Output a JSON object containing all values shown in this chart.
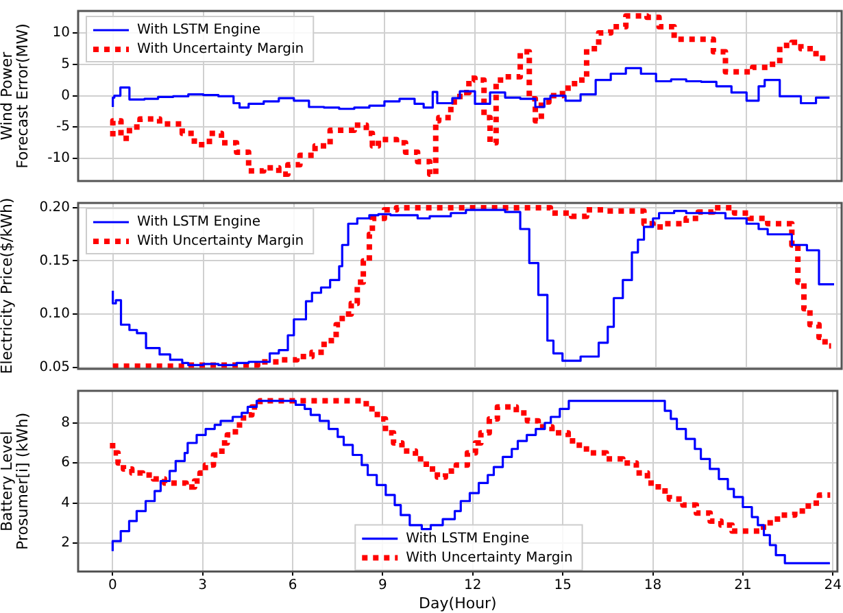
{
  "chart_data": [
    {
      "type": "step",
      "ylabel": "Wind Power Forecast Error(MW)",
      "xlim": [
        -1.15,
        24.15
      ],
      "xticks": [
        0,
        3,
        6,
        9,
        12,
        15,
        18,
        21,
        24
      ],
      "ylim": [
        -13.6,
        13.5
      ],
      "yticks": [
        -10,
        -5,
        0,
        5,
        10
      ],
      "grid": true,
      "legend": "top left",
      "tick_labels": "y",
      "series": [
        {
          "name": "With LSTM Engine",
          "color": "#0000ff",
          "line_style": "solid",
          "x": [
            0,
            0.05,
            0.25,
            0.55,
            1.05,
            1.5,
            2,
            2.5,
            3,
            3.5,
            4,
            4.2,
            4.5,
            5,
            5.5,
            6,
            6.5,
            7,
            7.5,
            8,
            8.5,
            9,
            9.5,
            10,
            10.3,
            10.6,
            10.75,
            11.25,
            11.5,
            12,
            12.5,
            13,
            13.5,
            14,
            14.3,
            14.5,
            15,
            15.5,
            16,
            16.5,
            17,
            17.5,
            18,
            18.5,
            19,
            19.5,
            20,
            20.5,
            21,
            21.4,
            21.6,
            22.1,
            22.8,
            23.3,
            23.75
          ],
          "values": [
            -1.8,
            -0.3,
            0,
            1.3,
            -0.6,
            -0.5,
            -0.2,
            -0.1,
            0.2,
            0.1,
            -0.1,
            -1.2,
            -1.9,
            -1.3,
            -0.9,
            -0.4,
            -0.8,
            -1.8,
            -1.9,
            -2.1,
            -1.9,
            -1.6,
            -0.9,
            -0.5,
            -1.3,
            -1.9,
            0.6,
            -1.2,
            -0.4,
            0.7,
            -1.3,
            0.5,
            -0.3,
            -0.5,
            -1.8,
            -0.5,
            0,
            -0.8,
            0.2,
            2.5,
            3.5,
            4.4,
            3.5,
            2.3,
            2.6,
            2.3,
            2.2,
            1.5,
            0.5,
            -0.8,
            1.5,
            2.5,
            -0.1,
            -1.2,
            -0.3
          ]
        },
        {
          "name": "With Uncertainty Margin",
          "color": "#ff0000",
          "line_style": "dotted",
          "x": [
            0,
            0.27,
            0.55,
            0.9,
            1.55,
            2.3,
            2.7,
            3.2,
            3.6,
            4.1,
            4.5,
            5,
            5.5,
            5.8,
            6.2,
            6.7,
            7.2,
            7.5,
            8,
            8.4,
            8.6,
            8.8,
            9.4,
            9.7,
            10.1,
            10.5,
            10.7,
            10.8,
            11.2,
            11.5,
            11.8,
            12,
            12.3,
            12.5,
            12.7,
            13,
            13.5,
            13.8,
            14,
            14.2,
            14.45,
            14.9,
            15.3,
            15.7,
            16.1,
            16.5,
            17,
            17.7,
            18.1,
            18.6,
            19.3,
            19.9,
            20.3,
            20.6,
            21.2,
            21.7,
            22.1,
            22.5,
            22.8,
            23.3,
            23.75
          ],
          "values": [
            -6.5,
            -4,
            -6.8,
            -5,
            -3.7,
            -4.5,
            -6,
            -7.8,
            -6,
            -7.5,
            -9,
            -12,
            -11.5,
            -12.5,
            -11,
            -9.5,
            -8,
            -5.5,
            -5.5,
            -4.7,
            -6,
            -8,
            -7,
            -7.5,
            -9,
            -10.5,
            -12.5,
            -4,
            -3.5,
            -1,
            0.5,
            2.8,
            2.5,
            -3.5,
            -7.5,
            2.5,
            3,
            7,
            -0.5,
            -4,
            -1,
            0,
            1.2,
            2.5,
            7.5,
            10,
            11,
            12.7,
            12.5,
            11,
            9,
            9,
            7,
            3.8,
            3.8,
            4.5,
            5,
            8,
            8.5,
            7.5,
            6
          ]
        }
      ]
    },
    {
      "type": "step",
      "ylabel": "Electricity Price($/kWh)",
      "xlim": [
        -1.15,
        24.15
      ],
      "xticks": [
        0,
        3,
        6,
        9,
        12,
        15,
        18,
        21,
        24
      ],
      "ylim": [
        0.0484,
        0.2045
      ],
      "yticks": [
        {
          "value": 0.05,
          "label": "0.05"
        },
        {
          "value": 0.1,
          "label": "0.10"
        },
        {
          "value": 0.15,
          "label": "0.15"
        },
        {
          "value": 0.2,
          "label": "0.20"
        }
      ],
      "grid": true,
      "legend": "top left",
      "tick_labels": "y",
      "series": [
        {
          "name": "With LSTM Engine",
          "color": "#0000ff",
          "line_style": "solid",
          "x": [
            0,
            0.1,
            0.27,
            0.55,
            0.8,
            1.1,
            1.55,
            1.9,
            2.3,
            2.5,
            3,
            3.5,
            4.1,
            4.5,
            5.2,
            5.5,
            5.8,
            6,
            6.4,
            6.6,
            6.9,
            7.2,
            7.5,
            7.6,
            7.8,
            8.1,
            8.5,
            8.8,
            9.2,
            10.1,
            10.5,
            11.2,
            11.7,
            12.1,
            13,
            13.5,
            13.8,
            14.1,
            14.4,
            14.6,
            14.9,
            15.2,
            15.5,
            16.1,
            16.4,
            16.6,
            16.9,
            17.2,
            17.4,
            17.6,
            17.9,
            18.1,
            18.6,
            19,
            19.7,
            20.3,
            21,
            21.4,
            21.7,
            22.5,
            23,
            23.4,
            23.6,
            23.9
          ],
          "values": [
            0.122,
            0.11,
            0.113,
            0.09,
            0.085,
            0.082,
            0.068,
            0.062,
            0.057,
            0.054,
            0.052,
            0.053,
            0.052,
            0.054,
            0.055,
            0.063,
            0.066,
            0.08,
            0.095,
            0.112,
            0.12,
            0.125,
            0.132,
            0.145,
            0.165,
            0.185,
            0.19,
            0.193,
            0.194,
            0.193,
            0.19,
            0.192,
            0.195,
            0.198,
            0.198,
            0.196,
            0.18,
            0.148,
            0.118,
            0.075,
            0.063,
            0.056,
            0.056,
            0.06,
            0.073,
            0.088,
            0.115,
            0.132,
            0.158,
            0.17,
            0.182,
            0.19,
            0.195,
            0.197,
            0.195,
            0.195,
            0.19,
            0.185,
            0.18,
            0.175,
            0.165,
            0.16,
            0.128,
            0.128
          ]
        },
        {
          "name": "With Uncertainty Margin",
          "color": "#ff0000",
          "line_style": "dotted",
          "x": [
            0,
            2.5,
            4.8,
            5.5,
            6.1,
            6.6,
            7,
            7.4,
            7.6,
            7.9,
            8.1,
            8.3,
            8.5,
            8.6,
            9,
            9.4,
            10.8,
            14.5,
            15.2,
            15.7,
            16.3,
            17.6,
            17.9,
            18.3,
            19,
            19.4,
            19.9,
            20.6,
            21.1,
            21.7,
            22.5,
            22.7,
            22.9,
            23.1,
            23.4,
            23.6,
            23.8
          ],
          "values": [
            0.051,
            0.051,
            0.052,
            0.055,
            0.057,
            0.06,
            0.064,
            0.075,
            0.09,
            0.1,
            0.11,
            0.13,
            0.15,
            0.175,
            0.19,
            0.198,
            0.2,
            0.2,
            0.195,
            0.192,
            0.198,
            0.197,
            0.185,
            0.182,
            0.185,
            0.19,
            0.196,
            0.2,
            0.195,
            0.19,
            0.185,
            0.165,
            0.13,
            0.105,
            0.09,
            0.078,
            0.07
          ]
        }
      ]
    },
    {
      "type": "step",
      "ylabel": "Battery Level Prosumer[i] (kWh)",
      "xlabel": "Day(Hour)",
      "xlim": [
        -1.15,
        24.15
      ],
      "xticks": [
        0,
        3,
        6,
        9,
        12,
        15,
        18,
        21,
        24
      ],
      "ylim": [
        0.58,
        9.6
      ],
      "yticks": [
        2,
        4,
        6,
        8
      ],
      "grid": true,
      "legend": "bottom",
      "series": [
        {
          "name": "With LSTM Engine",
          "color": "#0000ff",
          "line_style": "solid",
          "x": [
            0,
            0.27,
            0.55,
            0.8,
            1.1,
            1.4,
            1.6,
            1.9,
            2.1,
            2.4,
            2.5,
            2.8,
            3.1,
            3.4,
            3.6,
            4,
            4.3,
            4.5,
            4.8,
            5.1,
            6.1,
            6.4,
            6.6,
            6.9,
            7.2,
            7.5,
            7.7,
            8,
            8.3,
            8.5,
            8.8,
            9.1,
            9.4,
            9.6,
            9.9,
            10.3,
            10.6,
            11,
            11.4,
            11.6,
            11.9,
            12.2,
            12.5,
            12.7,
            13,
            13.3,
            13.5,
            13.8,
            14.1,
            14.4,
            14.6,
            14.9,
            15.2,
            15.4,
            18.4,
            18.6,
            18.8,
            19.1,
            19.4,
            19.6,
            19.9,
            20.2,
            20.5,
            20.7,
            21,
            21.3,
            21.5,
            21.7,
            21.9,
            22.1,
            22.4,
            22.5,
            23.9
          ],
          "values": [
            1.6,
            2.1,
            2.6,
            3.1,
            3.6,
            4.1,
            4.6,
            5.1,
            5.6,
            6.1,
            6.5,
            7,
            7.4,
            7.7,
            7.9,
            8.1,
            8.3,
            8.5,
            8.8,
            9.1,
            9.1,
            8.9,
            8.7,
            8.4,
            8.1,
            7.7,
            7.3,
            6.9,
            6.4,
            5.9,
            5.4,
            4.9,
            4.4,
            3.9,
            3.4,
            2.9,
            2.7,
            2.9,
            3.2,
            3.6,
            4.1,
            4.5,
            5,
            5.4,
            5.8,
            6.3,
            6.7,
            7.1,
            7.4,
            7.7,
            8,
            8.3,
            8.7,
            9.1,
            9.1,
            8.6,
            8.2,
            7.7,
            7.2,
            6.7,
            6.2,
            5.7,
            5.2,
            4.7,
            4.3,
            3.8,
            3.3,
            2.9,
            2.4,
            1.9,
            1.4,
            1,
            1
          ]
        },
        {
          "name": "With Uncertainty Margin",
          "color": "#ff0000",
          "line_style": "dotted",
          "x": [
            0,
            0.18,
            0.36,
            0.64,
            1,
            1.36,
            1.73,
            2,
            2.45,
            2.73,
            2.91,
            3.09,
            3.36,
            3.64,
            3.82,
            4.09,
            4.36,
            4.64,
            4.91,
            5.18,
            8.45,
            8.82,
            9.09,
            9.36,
            9.64,
            10.09,
            10.45,
            10.82,
            11.09,
            11.45,
            11.82,
            12.09,
            12.27,
            12.55,
            12.82,
            13.09,
            13.45,
            13.82,
            14.18,
            14.64,
            15.18,
            15.55,
            15.91,
            16.45,
            17,
            17.45,
            17.82,
            18.18,
            18.55,
            19,
            19.45,
            19.91,
            20.27,
            20.64,
            21.18,
            21.55,
            21.91,
            22.27,
            22.73,
            23.18,
            23.55,
            23.91
          ],
          "values": [
            7,
            6.5,
            6,
            5.7,
            5.5,
            5.4,
            5.2,
            5,
            5,
            4.8,
            5.1,
            5.5,
            5.9,
            6.4,
            7,
            7.4,
            7.9,
            8.4,
            8.8,
            9.1,
            9.1,
            8.7,
            8.2,
            7.5,
            7,
            6.6,
            6.2,
            5.7,
            5.3,
            5.6,
            5.9,
            6.5,
            7,
            7.5,
            8.2,
            8.8,
            8.8,
            8.5,
            8.1,
            7.8,
            7.5,
            7.1,
            6.7,
            6.5,
            6.2,
            6,
            5.5,
            5,
            4.6,
            4.2,
            3.9,
            3.5,
            3.1,
            2.9,
            2.6,
            2.6,
            2.8,
            3.2,
            3.4,
            3.6,
            4,
            4.4
          ]
        }
      ]
    }
  ]
}
